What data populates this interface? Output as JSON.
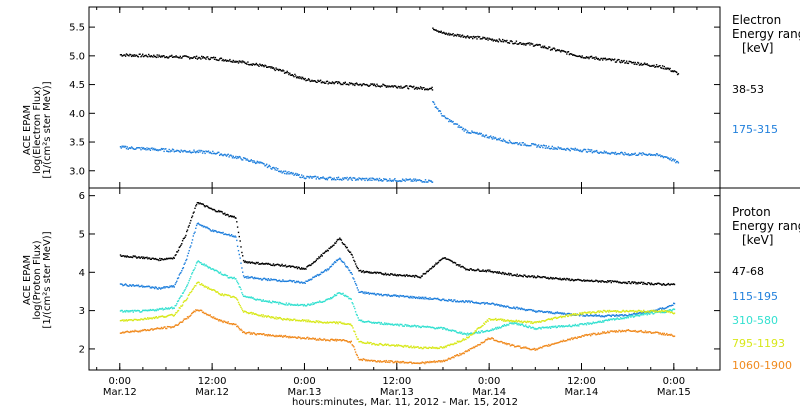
{
  "chart_data": [
    {
      "type": "scatter",
      "panel": "electron",
      "ylabel_lines": [
        "ACE EPAM",
        "log(Electron Flux)",
        "[1/(cm²s ster MeV)]"
      ],
      "ylim": [
        2.7,
        5.85
      ],
      "yticks": [
        "3.0",
        "3.5",
        "4.0",
        "4.5",
        "5.0",
        "5.5"
      ],
      "ytick_values": [
        3.0,
        3.5,
        4.0,
        4.5,
        5.0,
        5.5
      ],
      "legend_title": [
        "Electron",
        "Energy range",
        "[keV]"
      ],
      "series": [
        {
          "name": "38-53",
          "color": "#000000",
          "x_hours": [
            0,
            6,
            12,
            15,
            18,
            21,
            24,
            27,
            30,
            33,
            36,
            39,
            40.5,
            40.6,
            42,
            45,
            48,
            51,
            54,
            57,
            60,
            63,
            66,
            69,
            71,
            72.5
          ],
          "y": [
            5.03,
            5.0,
            4.97,
            4.92,
            4.85,
            4.75,
            4.6,
            4.55,
            4.52,
            4.5,
            4.48,
            4.45,
            4.44,
            5.5,
            5.4,
            5.35,
            5.3,
            5.25,
            5.2,
            5.1,
            5.0,
            4.95,
            4.9,
            4.85,
            4.8,
            4.7
          ]
        },
        {
          "name": "175-315",
          "color": "#1f7fdc",
          "x_hours": [
            0,
            6,
            12,
            15,
            18,
            21,
            24,
            27,
            30,
            33,
            36,
            39,
            40.5,
            40.6,
            42,
            45,
            48,
            51,
            54,
            57,
            60,
            63,
            66,
            69,
            71,
            72.5
          ],
          "y": [
            3.42,
            3.37,
            3.33,
            3.25,
            3.15,
            3.0,
            2.9,
            2.88,
            2.87,
            2.86,
            2.85,
            2.84,
            2.83,
            4.2,
            3.95,
            3.7,
            3.6,
            3.5,
            3.45,
            3.4,
            3.37,
            3.33,
            3.3,
            3.3,
            3.25,
            3.15
          ]
        }
      ]
    },
    {
      "type": "scatter",
      "panel": "proton",
      "ylabel_lines": [
        "ACE EPAM",
        "log(Proton Flux)",
        "[1/(cm²s ster MeV)]"
      ],
      "ylim": [
        1.45,
        6.2
      ],
      "yticks": [
        "2",
        "3",
        "4",
        "5",
        "6"
      ],
      "ytick_values": [
        2,
        3,
        4,
        5,
        6
      ],
      "legend_title": [
        "Proton",
        "Energy range",
        "[keV]"
      ],
      "series": [
        {
          "name": "47-68",
          "color": "#000000",
          "x_hours": [
            0,
            3,
            5,
            7,
            8.5,
            10,
            11,
            12,
            13,
            14,
            15,
            16,
            18,
            21,
            24,
            27,
            28.5,
            30,
            31,
            33,
            36,
            39,
            42,
            45,
            48,
            51,
            54,
            57,
            60,
            63,
            66,
            69,
            71,
            72
          ],
          "y": [
            4.45,
            4.4,
            4.35,
            4.4,
            5.0,
            5.85,
            5.75,
            5.65,
            5.6,
            5.5,
            5.45,
            4.3,
            4.25,
            4.2,
            4.1,
            4.6,
            4.9,
            4.5,
            4.05,
            4.0,
            3.95,
            3.9,
            4.4,
            4.1,
            4.05,
            3.95,
            3.9,
            3.85,
            3.8,
            3.78,
            3.75,
            3.72,
            3.7,
            3.7
          ]
        },
        {
          "name": "115-195",
          "color": "#1f7fdc",
          "x_hours": [
            0,
            3,
            5,
            7,
            8.5,
            10,
            11,
            12,
            13,
            14,
            15,
            16,
            18,
            21,
            24,
            27,
            28.5,
            30,
            31,
            33,
            36,
            39,
            42,
            45,
            48,
            51,
            54,
            57,
            60,
            63,
            66,
            69,
            71,
            72
          ],
          "y": [
            3.7,
            3.65,
            3.6,
            3.65,
            4.3,
            5.3,
            5.2,
            5.1,
            5.05,
            5.0,
            4.95,
            3.9,
            3.85,
            3.8,
            3.75,
            4.1,
            4.4,
            4.0,
            3.5,
            3.45,
            3.4,
            3.35,
            3.3,
            3.25,
            3.2,
            3.1,
            3.0,
            2.95,
            2.9,
            2.88,
            2.9,
            3.0,
            3.1,
            3.2
          ]
        },
        {
          "name": "310-580",
          "color": "#33e0d0",
          "x_hours": [
            0,
            3,
            5,
            7,
            8.5,
            10,
            11,
            12,
            13,
            14,
            15,
            16,
            18,
            21,
            24,
            27,
            28.5,
            30,
            31,
            33,
            36,
            39,
            42,
            45,
            48,
            51,
            54,
            57,
            60,
            63,
            66,
            69,
            71,
            72
          ],
          "y": [
            3.0,
            3.0,
            3.05,
            3.1,
            3.6,
            4.3,
            4.2,
            4.1,
            4.0,
            3.9,
            3.85,
            3.4,
            3.3,
            3.2,
            3.15,
            3.3,
            3.5,
            3.3,
            2.75,
            2.7,
            2.65,
            2.6,
            2.55,
            2.4,
            2.5,
            2.7,
            2.55,
            2.6,
            2.65,
            2.75,
            2.85,
            2.95,
            3.0,
            3.05
          ]
        },
        {
          "name": "795-1193",
          "color": "#d8e81a",
          "x_hours": [
            0,
            3,
            5,
            7,
            8.5,
            10,
            11,
            12,
            13,
            14,
            15,
            16,
            18,
            21,
            24,
            27,
            28.5,
            30,
            31,
            33,
            36,
            39,
            42,
            45,
            48,
            51,
            54,
            57,
            60,
            63,
            66,
            69,
            71,
            72
          ],
          "y": [
            2.75,
            2.8,
            2.85,
            2.9,
            3.3,
            3.75,
            3.65,
            3.55,
            3.45,
            3.4,
            3.35,
            3.0,
            2.9,
            2.8,
            2.75,
            2.7,
            2.7,
            2.65,
            2.2,
            2.15,
            2.1,
            2.05,
            2.05,
            2.3,
            2.8,
            2.75,
            2.7,
            2.85,
            2.95,
            3.0,
            3.0,
            3.0,
            3.0,
            2.95
          ]
        },
        {
          "name": "1060-1900",
          "color": "#f08a1e",
          "x_hours": [
            0,
            3,
            5,
            7,
            8.5,
            10,
            11,
            12,
            13,
            14,
            15,
            16,
            18,
            21,
            24,
            27,
            28.5,
            30,
            31,
            33,
            36,
            39,
            42,
            45,
            48,
            51,
            54,
            57,
            60,
            63,
            66,
            69,
            71,
            72
          ],
          "y": [
            2.45,
            2.5,
            2.55,
            2.6,
            2.8,
            3.05,
            2.95,
            2.85,
            2.75,
            2.7,
            2.65,
            2.45,
            2.4,
            2.35,
            2.3,
            2.25,
            2.25,
            2.2,
            1.75,
            1.7,
            1.68,
            1.65,
            1.7,
            1.95,
            2.3,
            2.1,
            2.0,
            2.2,
            2.35,
            2.45,
            2.5,
            2.45,
            2.4,
            2.35
          ]
        }
      ]
    }
  ],
  "x_axis": {
    "tick_top": [
      "0:00",
      "12:00",
      "0:00",
      "12:00",
      "0:00",
      "12:00",
      "0:00"
    ],
    "tick_bottom": [
      "Mar.12",
      "Mar.12",
      "Mar.13",
      "Mar.13",
      "Mar.14",
      "Mar.14",
      "Mar.15"
    ],
    "tick_hours": [
      0,
      12,
      24,
      36,
      48,
      60,
      72
    ],
    "xlim_hours": [
      -4,
      78
    ],
    "xlabel": "hours:minutes, Mar. 11, 2012 - Mar. 15, 2012"
  }
}
